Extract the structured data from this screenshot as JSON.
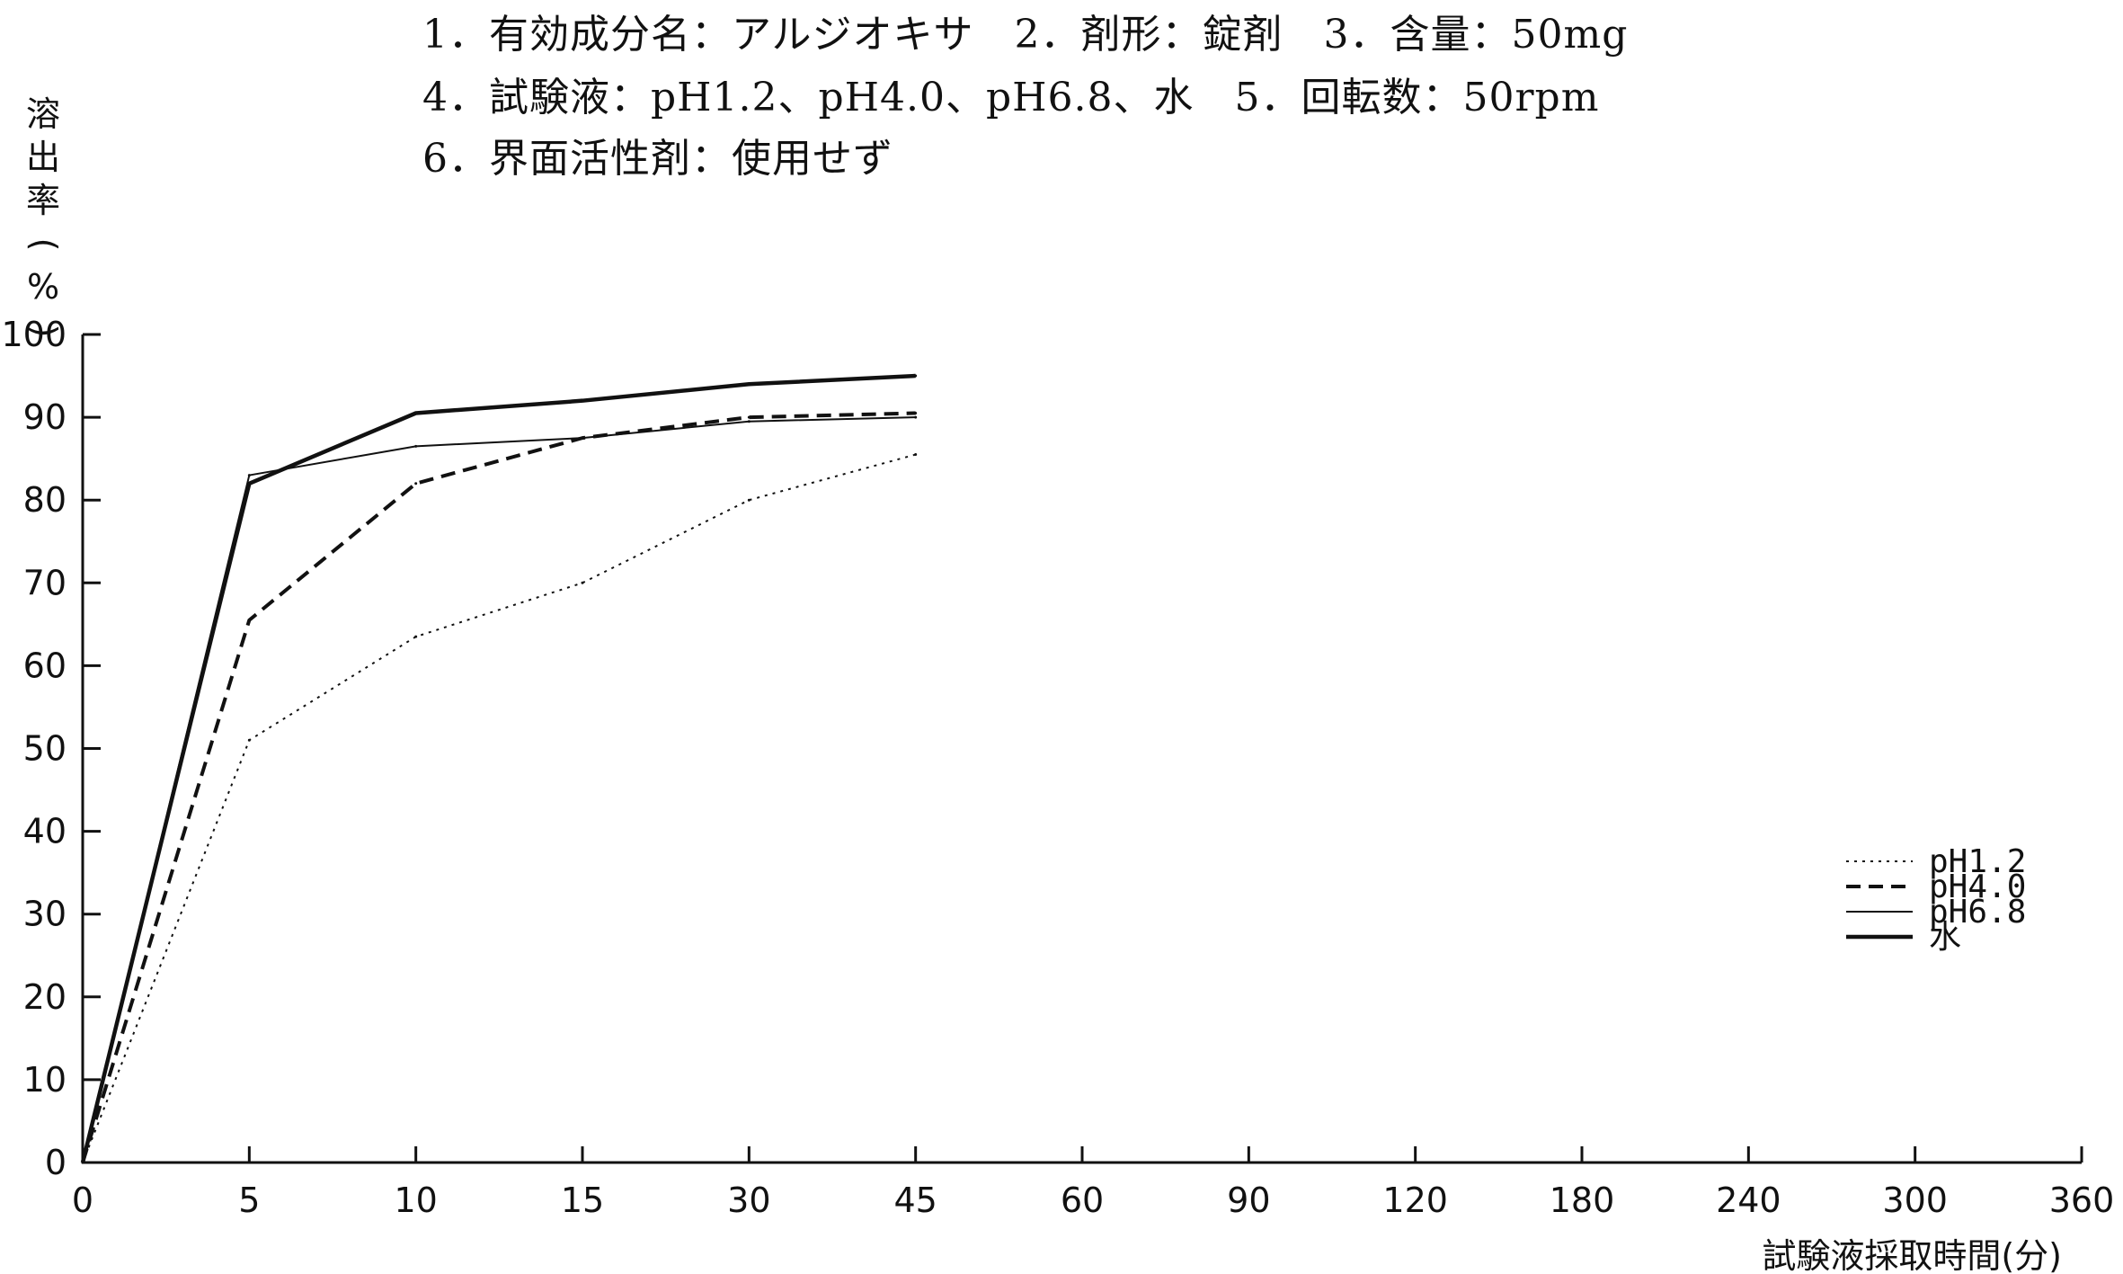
{
  "header": {
    "line1": "1．有効成分名：アルジオキサ　2．剤形：錠剤　3．含量：50mg",
    "line2": "4．試験液：pH1.2、pH4.0、pH6.8、水　5．回転数：50rpm",
    "line3": "6．界面活性剤：使用せず"
  },
  "chart_data": {
    "type": "line",
    "title": "",
    "xlabel": "試験液採取時間(分)",
    "ylabel": "溶出率(%)",
    "categories": [
      "0",
      "5",
      "10",
      "15",
      "30",
      "45",
      "60",
      "90",
      "120",
      "180",
      "240",
      "300",
      "360"
    ],
    "y_ticks": [
      "0",
      "10",
      "20",
      "30",
      "40",
      "50",
      "60",
      "70",
      "80",
      "90",
      "100"
    ],
    "ylim": [
      0,
      100
    ],
    "grid": false,
    "legend_position": "right",
    "series": [
      {
        "name": "pH1.2",
        "style": "dotted",
        "x": [
          "0",
          "5",
          "10",
          "15",
          "30",
          "45"
        ],
        "values": [
          0,
          51,
          63.5,
          70,
          80,
          85.5
        ]
      },
      {
        "name": "pH4.0",
        "style": "dashed",
        "x": [
          "0",
          "5",
          "10",
          "15",
          "30",
          "45"
        ],
        "values": [
          0,
          65.5,
          82,
          87.5,
          90,
          90.5
        ]
      },
      {
        "name": "pH6.8",
        "style": "thin",
        "x": [
          "0",
          "5",
          "10",
          "15",
          "30",
          "45"
        ],
        "values": [
          0,
          83,
          86.5,
          87.5,
          89.5,
          90
        ]
      },
      {
        "name": "水",
        "style": "thick",
        "x": [
          "0",
          "5",
          "10",
          "15",
          "30",
          "45"
        ],
        "values": [
          0,
          82,
          90.5,
          92,
          94,
          95
        ]
      }
    ],
    "colors": {
      "axis": "#111111",
      "lines": "#111111"
    }
  }
}
